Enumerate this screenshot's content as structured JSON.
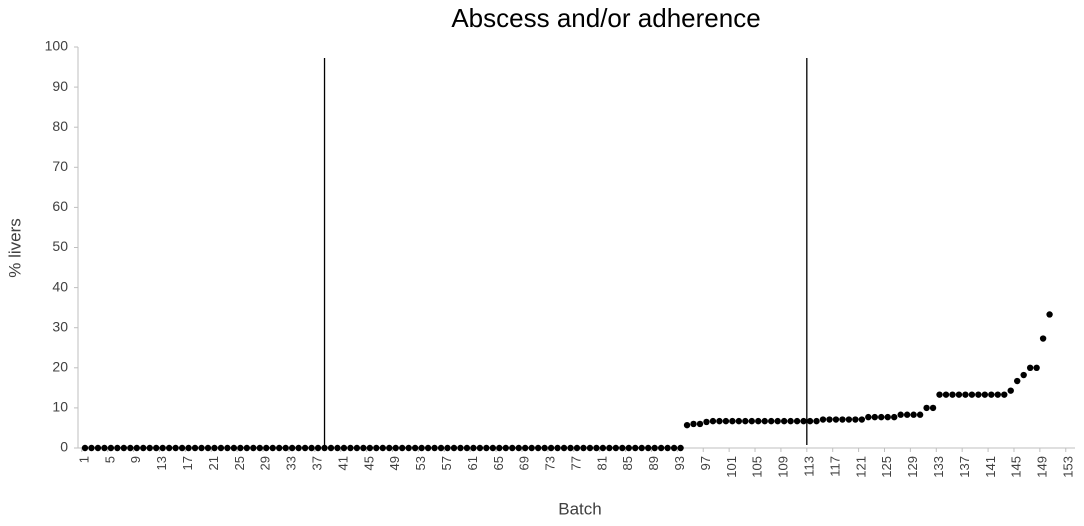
{
  "chart_data": {
    "type": "scatter",
    "title": "Abscess and/or adherence",
    "x_label": "Batch",
    "y_label": "% livers",
    "categories": [
      "1",
      null,
      null,
      null,
      "5",
      null,
      null,
      null,
      "9",
      null,
      null,
      null,
      "13",
      null,
      null,
      null,
      "17",
      null,
      null,
      null,
      "21",
      null,
      null,
      null,
      "25",
      null,
      null,
      null,
      "29",
      null,
      null,
      null,
      "33",
      null,
      null,
      null,
      "37",
      null,
      null,
      null,
      "41",
      null,
      null,
      null,
      "45",
      null,
      null,
      null,
      "49",
      null,
      null,
      null,
      "53",
      null,
      null,
      null,
      "57",
      null,
      null,
      null,
      "61",
      null,
      null,
      null,
      "65",
      null,
      null,
      null,
      "69",
      null,
      null,
      null,
      "73",
      null,
      null,
      null,
      "77",
      null,
      null,
      null,
      "81",
      null,
      null,
      null,
      "85",
      null,
      null,
      null,
      "89",
      null,
      null,
      null,
      "93",
      null,
      null,
      null,
      "97",
      null,
      null,
      null,
      "101",
      null,
      null,
      null,
      "105",
      null,
      null,
      null,
      "109",
      null,
      null,
      null,
      "113",
      null,
      null,
      null,
      "117",
      null,
      null,
      null,
      "121",
      null,
      null,
      null,
      "125",
      null,
      null,
      null,
      "129",
      null,
      null,
      null,
      "133",
      null,
      null,
      null,
      "137",
      null,
      null,
      null,
      "141",
      null,
      null,
      null,
      "145",
      null,
      null,
      null,
      "149",
      null,
      null,
      null,
      "153"
    ],
    "values": [
      0,
      0,
      0,
      0,
      0,
      0,
      0,
      0,
      0,
      0,
      0,
      0,
      0,
      0,
      0,
      0,
      0,
      0,
      0,
      0,
      0,
      0,
      0,
      0,
      0,
      0,
      0,
      0,
      0,
      0,
      0,
      0,
      0,
      0,
      0,
      0,
      0,
      0,
      0,
      0,
      0,
      0,
      0,
      0,
      0,
      0,
      0,
      0,
      0,
      0,
      0,
      0,
      0,
      0,
      0,
      0,
      0,
      0,
      0,
      0,
      0,
      0,
      0,
      0,
      0,
      0,
      0,
      0,
      0,
      0,
      0,
      0,
      0,
      0,
      0,
      0,
      0,
      0,
      0,
      0,
      0,
      0,
      0,
      0,
      0,
      0,
      0,
      0,
      0,
      0,
      0,
      0,
      0,
      5.7,
      6,
      6,
      6.5,
      6.7,
      6.7,
      6.7,
      6.7,
      6.7,
      6.7,
      6.7,
      6.7,
      6.7,
      6.7,
      6.7,
      6.7,
      6.7,
      6.7,
      6.7,
      6.7,
      6.7,
      7.1,
      7.1,
      7.1,
      7.1,
      7.1,
      7.1,
      7.1,
      7.7,
      7.7,
      7.7,
      7.7,
      7.7,
      8.3,
      8.3,
      8.3,
      8.3,
      10,
      10,
      13.3,
      13.3,
      13.3,
      13.3,
      13.3,
      13.3,
      13.3,
      13.3,
      13.3,
      13.3,
      13.3,
      14.3,
      16.7,
      18.2,
      20,
      20,
      27.3,
      33.3,
      null,
      null,
      null
    ],
    "color": "#000000",
    "vertical_lines": [
      38,
      112.5
    ],
    "ylim": [
      0,
      100
    ],
    "yticks": [
      0,
      10,
      20,
      30,
      40,
      50,
      60,
      70,
      80,
      90,
      100
    ],
    "grid": false
  }
}
